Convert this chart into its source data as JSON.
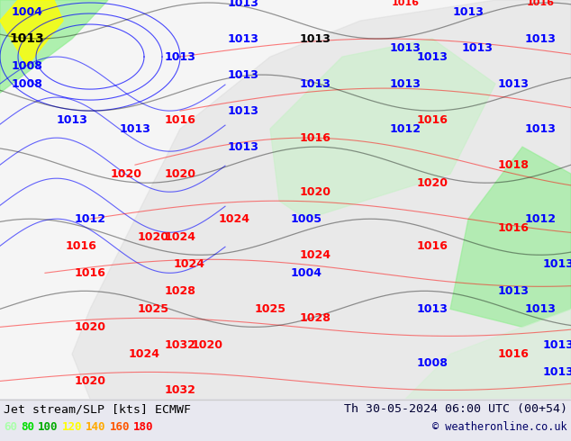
{
  "title_left": "Jet stream/SLP [kts] ECMWF",
  "title_right": "Th 30-05-2024 06:00 UTC (00+54)",
  "copyright": "© weatheronline.co.uk",
  "legend_values": [
    60,
    80,
    100,
    120,
    140,
    160,
    180
  ],
  "legend_colors": [
    "#aaffaa",
    "#00dd00",
    "#00aa00",
    "#ffff00",
    "#ffaa00",
    "#ff5500",
    "#ff0000"
  ],
  "bg_color": "#e8e8f0",
  "map_bg": "#ffffff",
  "bottom_bar_color": "#f0f0f0",
  "figsize": [
    6.34,
    4.9
  ],
  "dpi": 100,
  "font_color_left": "#000000",
  "font_color_right": "#000033",
  "font_size_title": 9.5,
  "font_size_legend": 9,
  "font_size_copyright": 8.5
}
